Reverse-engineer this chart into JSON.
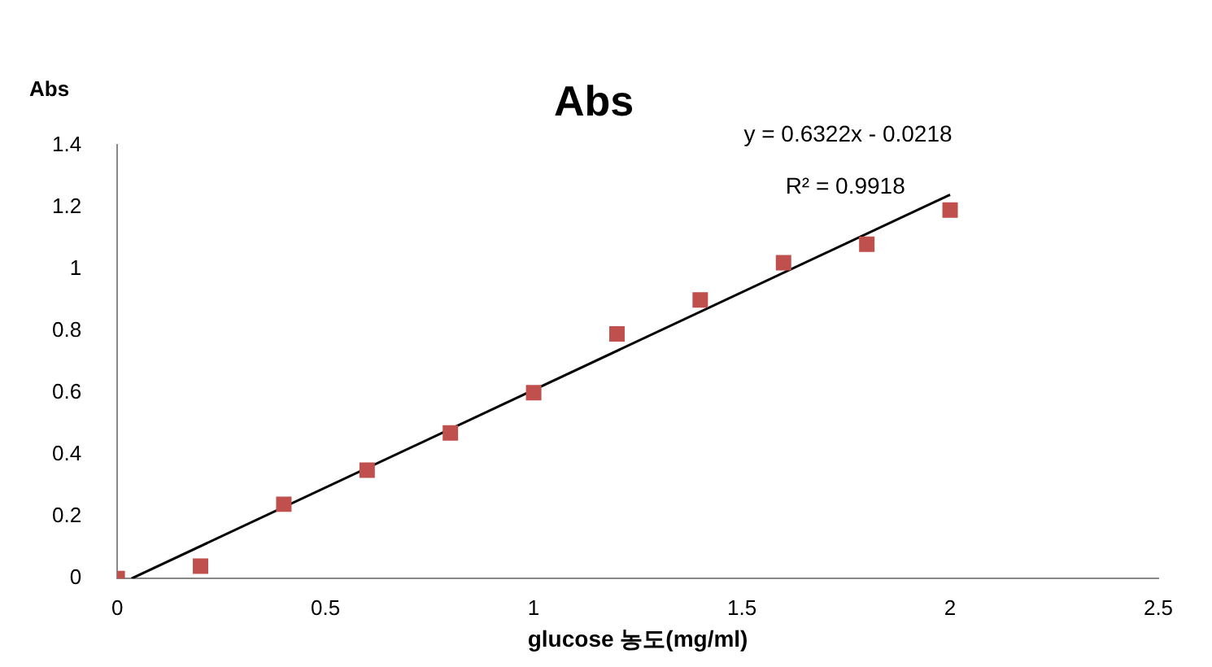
{
  "chart_data": {
    "type": "scatter",
    "title": "Abs",
    "xlabel": "glucose 농도(mg/ml)",
    "ylabel": "Abs",
    "annotations": [
      "y = 0.6322x - 0.0218",
      "R² = 0.9918"
    ],
    "xlim": [
      0,
      2.5
    ],
    "xticks": [
      0,
      0.5,
      1,
      1.5,
      2,
      2.5
    ],
    "ylim": [
      0,
      1.4
    ],
    "yticks": [
      0,
      0.2,
      0.4,
      0.6,
      0.8,
      1,
      1.2,
      1.4
    ],
    "grid": false,
    "legend": false,
    "series": [
      {
        "marker": "square",
        "color": "#c0504d",
        "x": [
          0,
          0.2,
          0.4,
          0.6,
          0.8,
          1,
          1.2,
          1.4,
          1.6,
          1.8,
          2
        ],
        "values": [
          0,
          0.04,
          0.24,
          0.35,
          0.47,
          0.6,
          0.79,
          0.9,
          1.02,
          1.08,
          1.19
        ]
      },
      {
        "type": "line",
        "color": "#000000",
        "x": [
          0.0345,
          2
        ],
        "values": [
          0,
          1.24
        ]
      }
    ]
  }
}
